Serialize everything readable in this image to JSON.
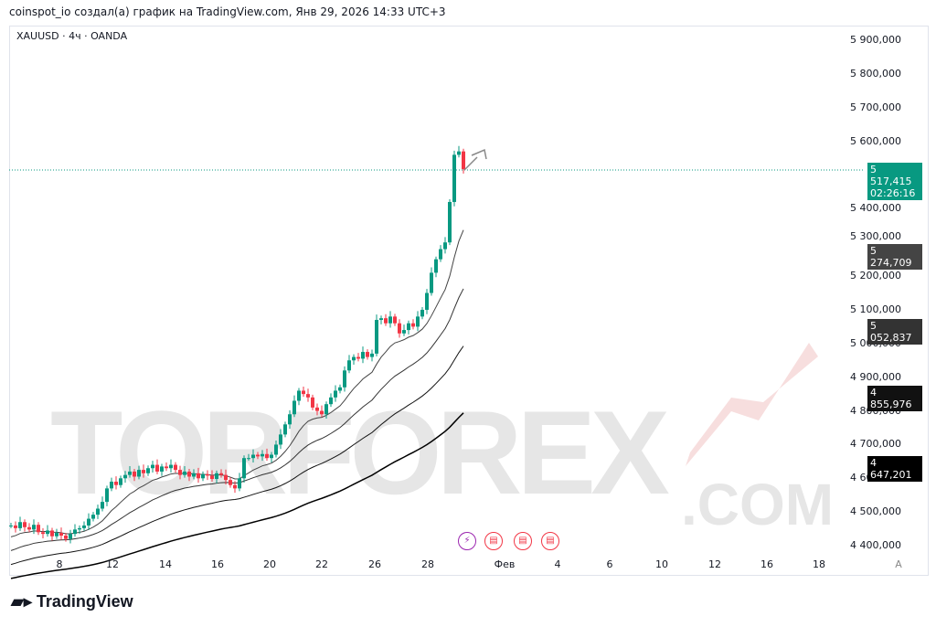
{
  "header": {
    "credit": "coinspot_io создал(а) график на TradingView.com, Янв 29, 2026 14:33 UTC+3"
  },
  "symbol": {
    "title": "XAUUSD · 4ч · OANDA"
  },
  "watermark": {
    "text_a": "TOR",
    "text_b": "FOREX",
    "text_c": ".COM"
  },
  "price_axis": {
    "labels": [
      "5 900,000",
      "5 800,000",
      "5 700,000",
      "5 600,000",
      "5 400,000",
      "5 300,000",
      "5 200,000",
      "5 100,000",
      "5 000,000",
      "4 900,000",
      "4 800,000",
      "4 700,000",
      "4 600,000",
      "4 500,000",
      "4 400,000"
    ],
    "last_price": "5 517,415",
    "countdown": "02:26:16",
    "ma_tags": [
      "5 274,709",
      "5 052,837",
      "4 855,976",
      "4 647,201"
    ]
  },
  "time_axis": {
    "labels": [
      "8",
      "12",
      "14",
      "16",
      "20",
      "22",
      "26",
      "28",
      "Фев",
      "4",
      "6",
      "10",
      "12",
      "16",
      "18"
    ],
    "auto": "A"
  },
  "brand": {
    "name": "TradingView"
  },
  "colors": {
    "up": "#089981",
    "down": "#f23645",
    "last": "#089981"
  },
  "chart_data": {
    "type": "candlestick",
    "ylim": [
      4400,
      5900
    ],
    "closes": [
      4460,
      4452,
      4470,
      4455,
      4448,
      4462,
      4440,
      4435,
      4445,
      4428,
      4438,
      4430,
      4420,
      4435,
      4448,
      4452,
      4460,
      4480,
      4492,
      4510,
      4530,
      4570,
      4590,
      4580,
      4600,
      4610,
      4620,
      4605,
      4625,
      4615,
      4630,
      4640,
      4620,
      4635,
      4630,
      4640,
      4625,
      4610,
      4620,
      4605,
      4615,
      4600,
      4612,
      4608,
      4598,
      4615,
      4610,
      4595,
      4580,
      4570,
      4600,
      4660,
      4660,
      4670,
      4665,
      4672,
      4660,
      4670,
      4700,
      4730,
      4760,
      4790,
      4830,
      4860,
      4850,
      4840,
      4810,
      4800,
      4790,
      4820,
      4840,
      4860,
      4870,
      4920,
      4950,
      4960,
      4955,
      4975,
      4960,
      4970,
      5070,
      5075,
      5060,
      5080,
      5060,
      5030,
      5040,
      5060,
      5050,
      5080,
      5100,
      5150,
      5210,
      5250,
      5280,
      5300,
      5420,
      5560,
      5570,
      5517.415
    ],
    "ma_last": [
      5274.709,
      5052.837,
      4855.976,
      4647.201
    ]
  }
}
